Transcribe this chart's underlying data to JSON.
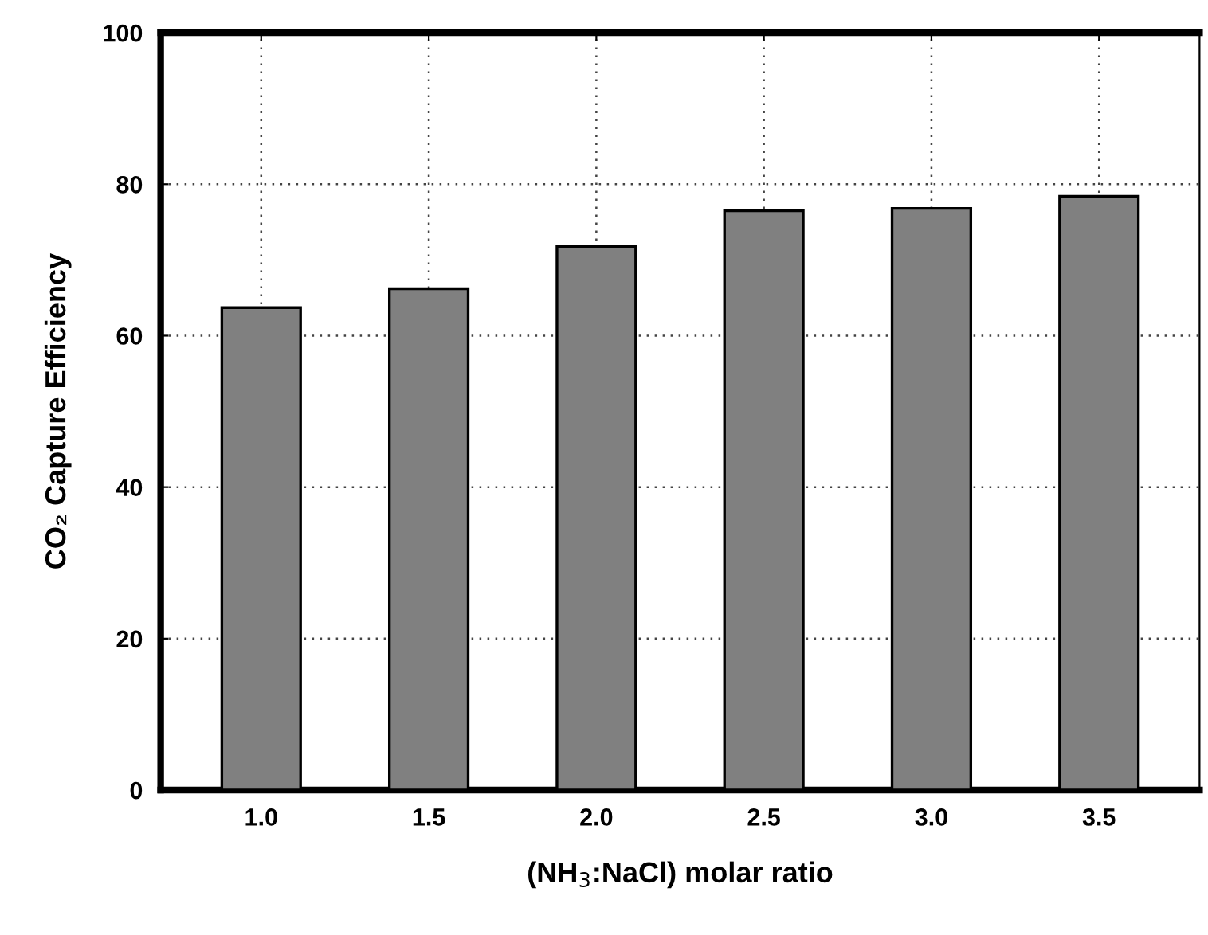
{
  "chart_data": {
    "type": "bar",
    "xlabel": "(NH$_{3}$:NaCl) molar ratio",
    "ylabel": "CO₂ Capture Efficiency",
    "categories": [
      "1.0",
      "1.5",
      "2.0",
      "2.5",
      "3.0",
      "3.5"
    ],
    "values": [
      63.7,
      66.2,
      71.8,
      76.5,
      76.8,
      78.4
    ],
    "color": "#808080",
    "ylim": [
      0,
      100
    ],
    "yticks": [
      0,
      20,
      40,
      60,
      80,
      100
    ],
    "grid": true
  }
}
